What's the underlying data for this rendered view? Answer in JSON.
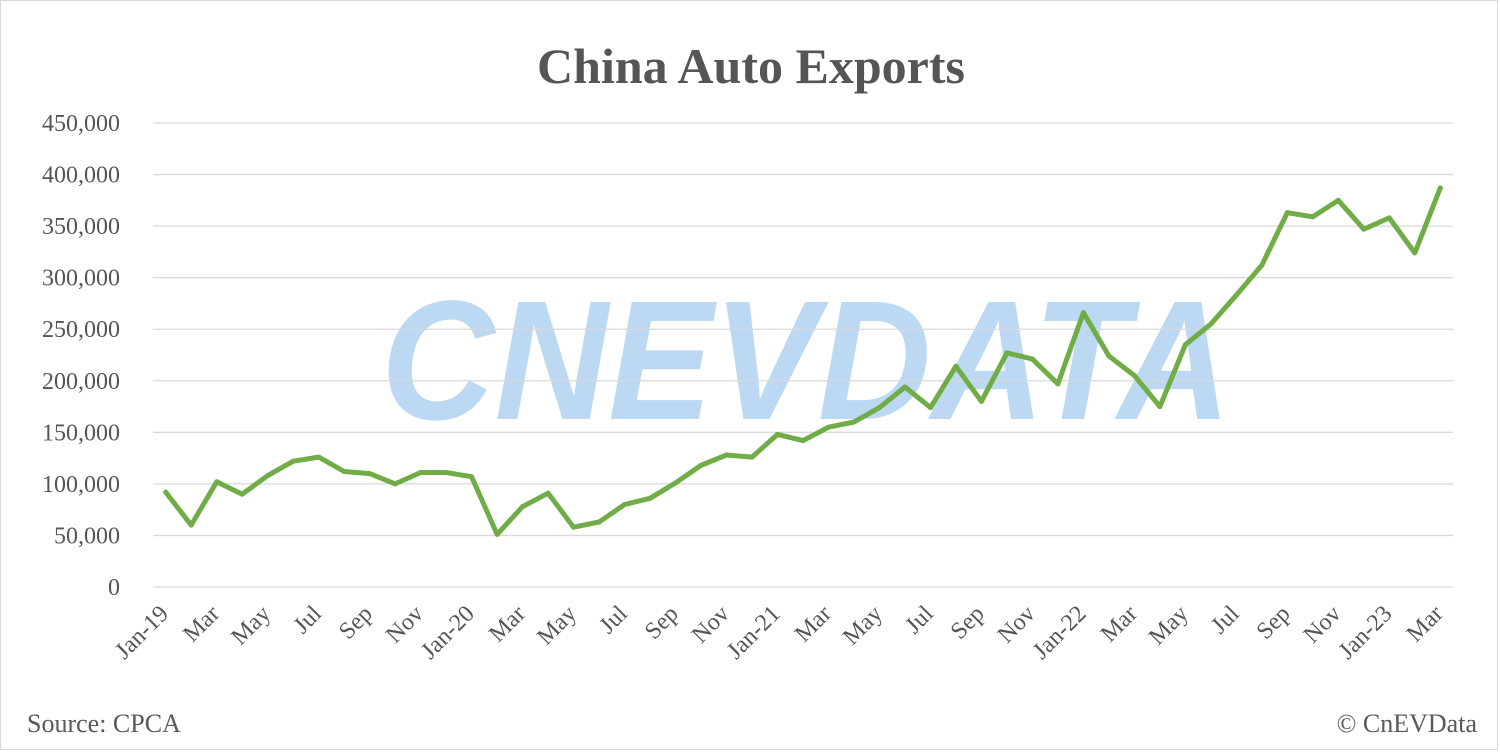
{
  "chart_data": {
    "type": "line",
    "title": "China Auto Exports",
    "x": [
      "Jan-19",
      "Feb-19",
      "Mar-19",
      "Apr-19",
      "May-19",
      "Jun-19",
      "Jul-19",
      "Aug-19",
      "Sep-19",
      "Oct-19",
      "Nov-19",
      "Dec-19",
      "Jan-20",
      "Feb-20",
      "Mar-20",
      "Apr-20",
      "May-20",
      "Jun-20",
      "Jul-20",
      "Aug-20",
      "Sep-20",
      "Oct-20",
      "Nov-20",
      "Dec-20",
      "Jan-21",
      "Feb-21",
      "Mar-21",
      "Apr-21",
      "May-21",
      "Jun-21",
      "Jul-21",
      "Aug-21",
      "Sep-21",
      "Oct-21",
      "Nov-21",
      "Dec-21",
      "Jan-22",
      "Feb-22",
      "Mar-22",
      "Apr-22",
      "May-22",
      "Jun-22",
      "Jul-22",
      "Aug-22",
      "Sep-22",
      "Oct-22",
      "Nov-22",
      "Dec-22",
      "Jan-23",
      "Feb-23",
      "Mar-23"
    ],
    "tick_labels": [
      "Jan-19",
      "Mar",
      "May",
      "Jul",
      "Sep",
      "Nov",
      "Jan-20",
      "Mar",
      "May",
      "Jul",
      "Sep",
      "Nov",
      "Jan-21",
      "Mar",
      "May",
      "Jul",
      "Sep",
      "Nov",
      "Jan-22",
      "Mar",
      "May",
      "Jul",
      "Sep",
      "Nov",
      "Jan-23",
      "Mar"
    ],
    "series": [
      {
        "values": [
          92000,
          60000,
          102000,
          90000,
          108000,
          122000,
          126000,
          112000,
          110000,
          100000,
          111000,
          111000,
          107000,
          51000,
          78000,
          91000,
          58000,
          63000,
          80000,
          86000,
          101000,
          118000,
          128000,
          126000,
          148000,
          142000,
          155000,
          160000,
          174000,
          194000,
          174000,
          214000,
          180000,
          227000,
          221000,
          197000,
          266000,
          224000,
          205000,
          175000,
          235000,
          255000,
          283000,
          312000,
          363000,
          359000,
          375000,
          347000,
          358000,
          324000,
          387000
        ],
        "color": "#70ad47"
      }
    ],
    "ylim": [
      0,
      450000
    ],
    "y_ticks": [
      0,
      50000,
      100000,
      150000,
      200000,
      250000,
      300000,
      350000,
      400000,
      450000
    ],
    "y_tick_labels": [
      "0",
      "50,000",
      "100,000",
      "150,000",
      "200,000",
      "250,000",
      "300,000",
      "350,000",
      "400,000",
      "450,000"
    ],
    "grid": true,
    "legend": "none"
  },
  "watermark": "CNEVDATA",
  "source": "Source: CPCA",
  "copyright": "© CnEVData",
  "colors": {
    "line": "#70ad47",
    "grid": "#d9d9d9",
    "text": "#595959",
    "watermark": "#bcd8f3"
  }
}
